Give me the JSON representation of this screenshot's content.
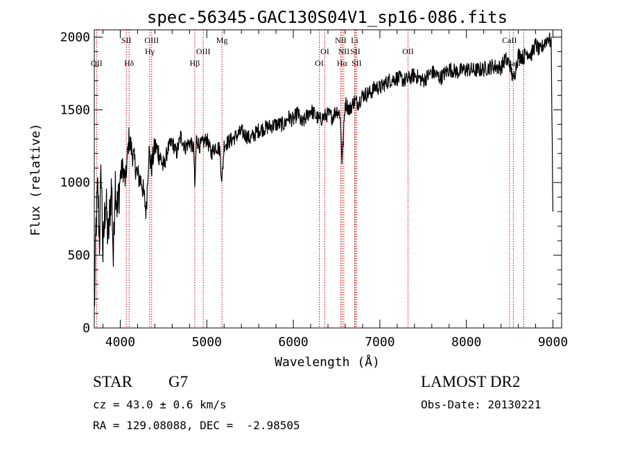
{
  "chart_data": {
    "type": "line",
    "title": "spec-56345-GAC130S04V1_sp16-086.fits",
    "xlabel": "Wavelength (Å)",
    "ylabel": "Flux (relative)",
    "xlim": [
      3700,
      9100
    ],
    "ylim": [
      0,
      2050
    ],
    "xticks": [
      4000,
      5000,
      6000,
      7000,
      8000,
      9000
    ],
    "yticks": [
      0,
      500,
      1000,
      1500,
      2000
    ],
    "grid": false,
    "line_color": "#000000",
    "marker_color": "#cc0000",
    "series": [
      {
        "x": [
          3700,
          3720,
          3740,
          3760,
          3780,
          3800,
          3830,
          3860,
          3900,
          3920,
          3940,
          3970,
          4000,
          4030,
          4060,
          4100,
          4150,
          4200,
          4250,
          4300,
          4330,
          4360,
          4400,
          4450,
          4500,
          4550,
          4600,
          4650,
          4700,
          4750,
          4800,
          4850,
          4861,
          4880,
          4920,
          5000,
          5050,
          5100,
          5150,
          5175,
          5200,
          5300,
          5400,
          5500,
          5600,
          5700,
          5800,
          5900,
          5940,
          6000,
          6050,
          6100,
          6200,
          6300,
          6400,
          6450,
          6500,
          6540,
          6563,
          6600,
          6650,
          6700,
          6750,
          6800,
          6900,
          6950,
          7000,
          7100,
          7200,
          7300,
          7400,
          7500,
          7600,
          7700,
          7800,
          7900,
          8000,
          8100,
          8200,
          8300,
          8400,
          8450,
          8500,
          8542,
          8600,
          8660,
          8700,
          8750,
          8800,
          8850,
          8900,
          8950,
          8980,
          9000
        ],
        "y": [
          100,
          700,
          950,
          600,
          1100,
          500,
          900,
          600,
          1000,
          450,
          1050,
          800,
          1050,
          1100,
          1000,
          1300,
          1180,
          1050,
          1000,
          800,
          1220,
          1100,
          1250,
          1200,
          1100,
          1230,
          1280,
          1200,
          1320,
          1240,
          1280,
          1230,
          950,
          1300,
          1250,
          1300,
          1200,
          1250,
          1230,
          1000,
          1260,
          1300,
          1350,
          1300,
          1360,
          1380,
          1400,
          1400,
          1450,
          1430,
          1480,
          1400,
          1500,
          1430,
          1470,
          1450,
          1500,
          1470,
          1150,
          1550,
          1500,
          1560,
          1550,
          1600,
          1620,
          1660,
          1650,
          1700,
          1720,
          1700,
          1740,
          1700,
          1760,
          1720,
          1780,
          1760,
          1780,
          1770,
          1780,
          1800,
          1790,
          1850,
          1820,
          1700,
          1880,
          1860,
          1900,
          1880,
          1950,
          1900,
          1960,
          2000,
          1950,
          800
        ]
      }
    ],
    "lines": [
      {
        "label": "OII",
        "x": 3727,
        "row": 3
      },
      {
        "label": "SII",
        "x": 4070,
        "row": 1
      },
      {
        "label": "Hδ",
        "x": 4102,
        "row": 3
      },
      {
        "label": "OIII",
        "x": 4363,
        "row": 1
      },
      {
        "label": "Hγ",
        "x": 4341,
        "row": 2
      },
      {
        "label": "Hβ",
        "x": 4861,
        "row": 3
      },
      {
        "label": "OIII",
        "x": 4959,
        "row": 2
      },
      {
        "label": "Mg",
        "x": 5175,
        "row": 1
      },
      {
        "label": "OI",
        "x": 6300,
        "row": 3
      },
      {
        "label": "OI",
        "x": 6364,
        "row": 2
      },
      {
        "label": "NII",
        "x": 6548,
        "row": 1
      },
      {
        "label": "NII",
        "x": 6583,
        "row": 2
      },
      {
        "label": "Hα",
        "x": 6563,
        "row": 3
      },
      {
        "label": "Li",
        "x": 6708,
        "row": 1
      },
      {
        "label": "SII",
        "x": 6716,
        "row": 2
      },
      {
        "label": "SII",
        "x": 6731,
        "row": 3
      },
      {
        "label": "OII",
        "x": 7325,
        "row": 2
      },
      {
        "label": "CaII",
        "x": 8498,
        "row": 1
      },
      {
        "label": "CaII",
        "x": 8542,
        "row": 3
      },
      {
        "label": "",
        "x": 8662,
        "row": 0
      }
    ]
  },
  "info": {
    "star_class": "STAR",
    "subclass": "G7",
    "survey": "LAMOST DR2",
    "cz": "cz = 43.0 ± 0.6 km/s",
    "obs_date": "Obs-Date: 20130221",
    "coords": "RA = 129.08088, DEC =  -2.98505"
  }
}
